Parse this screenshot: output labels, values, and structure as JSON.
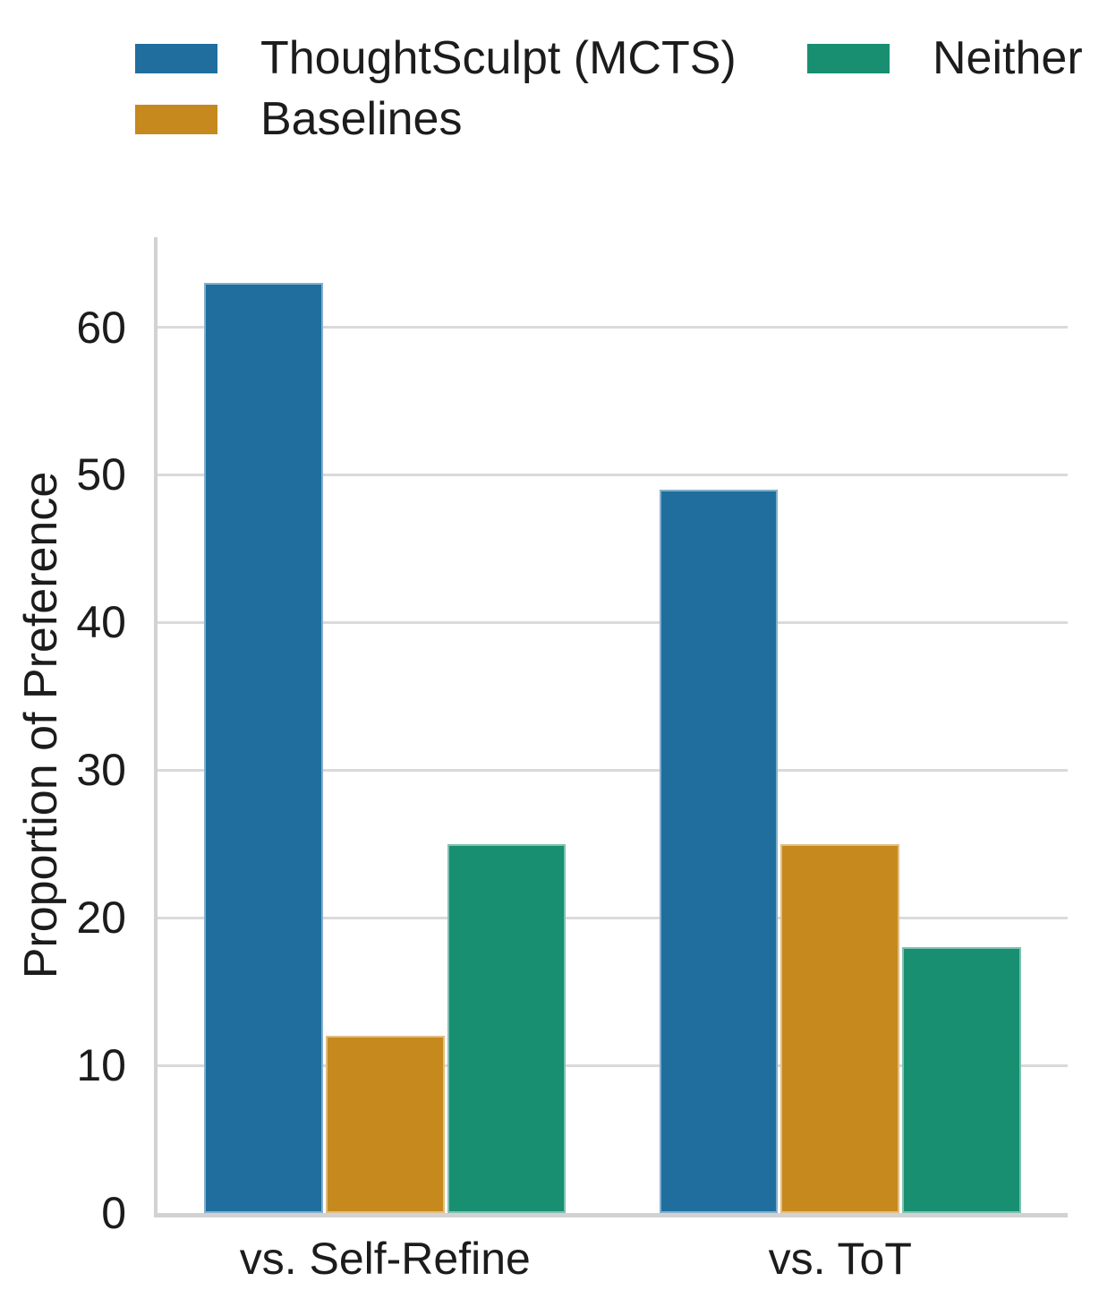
{
  "chart_data": {
    "type": "bar",
    "categories": [
      "vs. Self-Refine",
      "vs. ToT"
    ],
    "series": [
      {
        "name": "ThoughtSculpt (MCTS)",
        "color": "#1f6e9e",
        "values": [
          63,
          49
        ]
      },
      {
        "name": "Baselines",
        "color": "#c6891e",
        "values": [
          12,
          25
        ]
      },
      {
        "name": "Neither",
        "color": "#178f70",
        "values": [
          25,
          18
        ]
      }
    ],
    "title": "",
    "xlabel": "",
    "ylabel": "Proportion of Preference",
    "yticks": [
      0,
      10,
      20,
      30,
      40,
      50,
      60
    ],
    "ylim": [
      0,
      66.1
    ],
    "grid": "horizontal",
    "legend_position": "top",
    "legend_columns": [
      [
        0,
        1
      ],
      [
        2
      ]
    ]
  },
  "colors": {
    "background": "#ffffff",
    "text": "#1c1c1c",
    "gridline": "#dadada",
    "spine": "#d2d2d2"
  }
}
